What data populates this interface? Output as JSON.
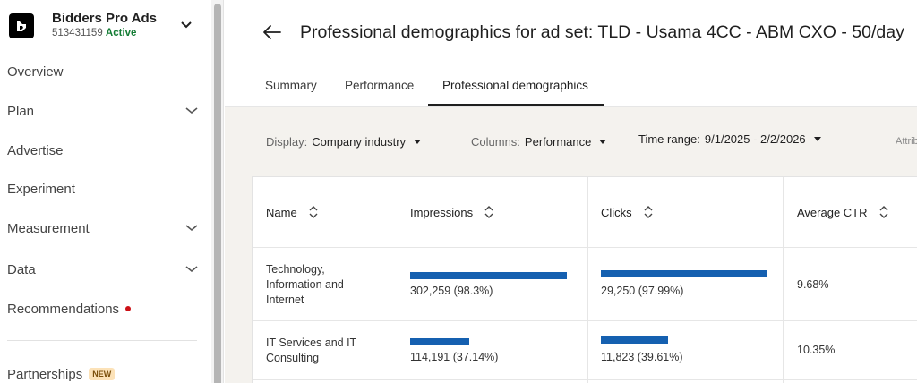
{
  "sidebar": {
    "account_name": "Bidders Pro Ads",
    "account_id": "513431159",
    "account_status": "Active",
    "items": [
      {
        "label": "Overview",
        "has_chevron": false
      },
      {
        "label": "Plan",
        "has_chevron": true
      },
      {
        "label": "Advertise",
        "has_chevron": false
      },
      {
        "label": "Experiment",
        "has_chevron": false
      },
      {
        "label": "Measurement",
        "has_chevron": true
      },
      {
        "label": "Data",
        "has_chevron": true
      },
      {
        "label": "Recommendations",
        "has_chevron": false
      }
    ],
    "partnerships": {
      "label": "Partnerships",
      "badge": "NEW"
    }
  },
  "header": {
    "title": "Professional demographics for ad set: TLD - Usama 4CC - ABM CXO - 50/day"
  },
  "tabs": [
    "Summary",
    "Performance",
    "Professional demographics"
  ],
  "active_tab": "Professional demographics",
  "filters": {
    "display": {
      "label": "Display:",
      "value": "Company industry"
    },
    "columns": {
      "label": "Columns:",
      "value": "Performance"
    },
    "time_range": {
      "label": "Time range:",
      "value": "9/1/2025 - 2/2/2026"
    },
    "attribution_partial": "Attrib"
  },
  "table": {
    "columns": [
      "Name",
      "Impressions",
      "Clicks",
      "Average CTR"
    ],
    "rows": [
      {
        "name_lines": [
          "Technology,",
          "Information and",
          "Internet"
        ],
        "impressions": "302,259 (98.3%)",
        "impressions_share": 0.983,
        "clicks": "29,250 (97.99%)",
        "clicks_share": 0.9799,
        "ctr": "9.68%"
      },
      {
        "name_lines": [
          "IT Services and IT",
          "Consulting"
        ],
        "impressions": "114,191 (37.14%)",
        "impressions_share": 0.3714,
        "clicks": "11,823 (39.61%)",
        "clicks_share": 0.3961,
        "ctr": "10.35%"
      }
    ]
  },
  "colors": {
    "bar": "#1560b0",
    "active_status": "#137c34",
    "notification_dot": "#cc1016"
  }
}
